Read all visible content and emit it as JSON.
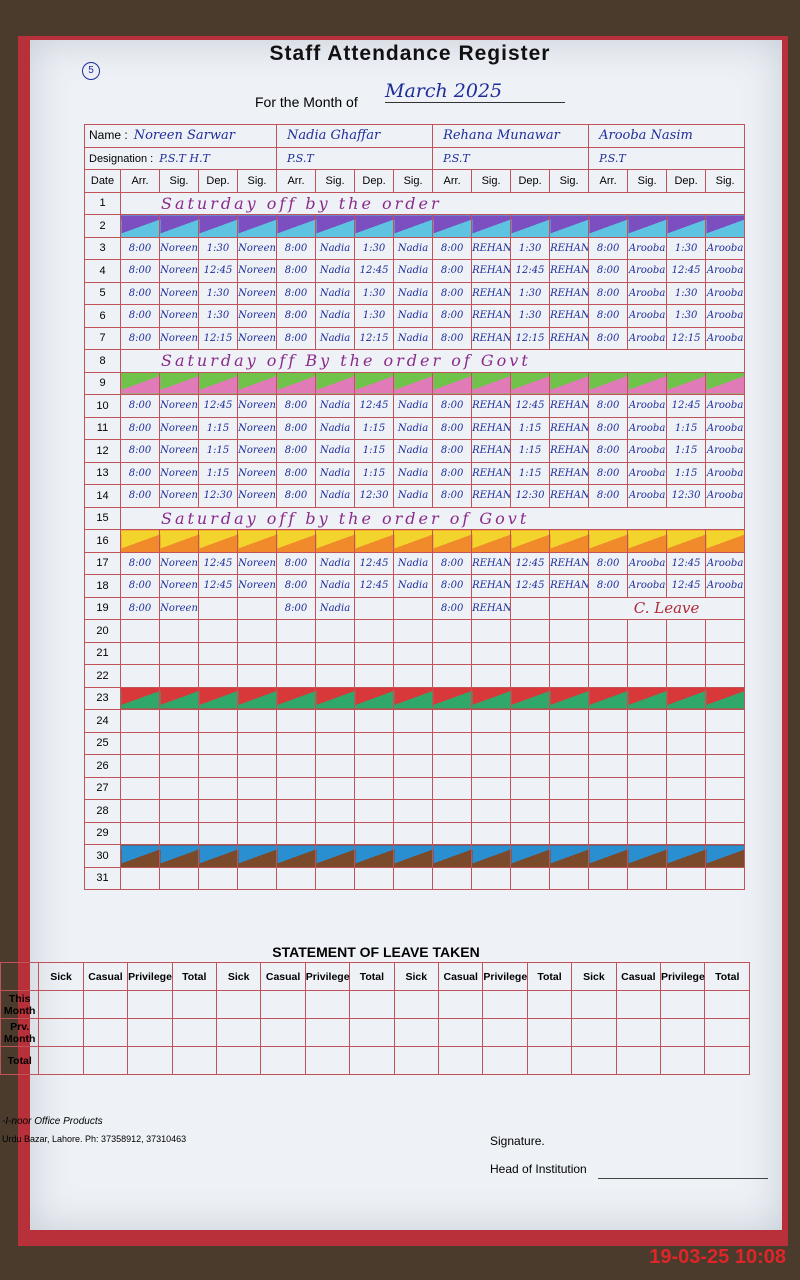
{
  "header": {
    "page": "5",
    "title": "Staff Attendance Register",
    "month_label": "For the Month of",
    "month": "March 2025"
  },
  "labels": {
    "name": "Name :",
    "designation": "Designation :"
  },
  "columns": [
    "Date",
    "Arr.",
    "Sig.",
    "Dep.",
    "Sig."
  ],
  "staff": [
    {
      "name": "Noreen Sarwar",
      "designation": "P.S.T  H.T"
    },
    {
      "name": "Nadia Ghaffar",
      "designation": "P.S.T"
    },
    {
      "name": "Rehana Munawar",
      "designation": "P.S.T"
    },
    {
      "name": "Arooba Nasim",
      "designation": "P.S.T"
    }
  ],
  "rows": [
    {
      "date": "1",
      "note": "Saturday off by the order"
    },
    {
      "date": "2",
      "stripe": [
        "#7b4fc0",
        "#5ec3e0"
      ]
    },
    {
      "date": "3",
      "cells": [
        [
          "8:00",
          "Noreen",
          "1:30",
          "Noreen"
        ],
        [
          "8:00",
          "Nadia",
          "1:30",
          "Nadia"
        ],
        [
          "8:00",
          "REHANA",
          "1:30",
          "REHANA"
        ],
        [
          "8:00",
          "Arooba",
          "1:30",
          "Arooba"
        ]
      ]
    },
    {
      "date": "4",
      "cells": [
        [
          "8:00",
          "Noreen",
          "12:45",
          "Noreen"
        ],
        [
          "8:00",
          "Nadia",
          "12:45",
          "Nadia"
        ],
        [
          "8:00",
          "REHANA",
          "12:45",
          "REHANA"
        ],
        [
          "8:00",
          "Arooba",
          "12:45",
          "Arooba"
        ]
      ]
    },
    {
      "date": "5",
      "cells": [
        [
          "8:00",
          "Noreen",
          "1:30",
          "Noreen"
        ],
        [
          "8:00",
          "Nadia",
          "1:30",
          "Nadia"
        ],
        [
          "8:00",
          "REHANA",
          "1:30",
          "REHANA"
        ],
        [
          "8:00",
          "Arooba",
          "1:30",
          "Arooba"
        ]
      ]
    },
    {
      "date": "6",
      "cells": [
        [
          "8:00",
          "Noreen",
          "1:30",
          "Noreen"
        ],
        [
          "8:00",
          "Nadia",
          "1:30",
          "Nadia"
        ],
        [
          "8:00",
          "REHANA",
          "1:30",
          "REHANA"
        ],
        [
          "8:00",
          "Arooba",
          "1:30",
          "Arooba"
        ]
      ]
    },
    {
      "date": "7",
      "cells": [
        [
          "8:00",
          "Noreen",
          "12:15",
          "Noreen"
        ],
        [
          "8:00",
          "Nadia",
          "12:15",
          "Nadia"
        ],
        [
          "8:00",
          "REHANA",
          "12:15",
          "REHANA"
        ],
        [
          "8:00",
          "Arooba",
          "12:15",
          "Arooba"
        ]
      ]
    },
    {
      "date": "8",
      "note": "Saturday off By the order of Govt"
    },
    {
      "date": "9",
      "stripe": [
        "#6fc24a",
        "#e07bb8"
      ]
    },
    {
      "date": "10",
      "cells": [
        [
          "8:00",
          "Noreen",
          "12:45",
          "Noreen"
        ],
        [
          "8:00",
          "Nadia",
          "12:45",
          "Nadia"
        ],
        [
          "8:00",
          "REHANA",
          "12:45",
          "REHANA"
        ],
        [
          "8:00",
          "Arooba",
          "12:45",
          "Arooba"
        ]
      ]
    },
    {
      "date": "11",
      "cells": [
        [
          "8:00",
          "Noreen",
          "1:15",
          "Noreen"
        ],
        [
          "8:00",
          "Nadia",
          "1:15",
          "Nadia"
        ],
        [
          "8:00",
          "REHANA",
          "1:15",
          "REHANA"
        ],
        [
          "8:00",
          "Arooba",
          "1:15",
          "Arooba"
        ]
      ]
    },
    {
      "date": "12",
      "cells": [
        [
          "8:00",
          "Noreen",
          "1:15",
          "Noreen"
        ],
        [
          "8:00",
          "Nadia",
          "1:15",
          "Nadia"
        ],
        [
          "8:00",
          "REHANA",
          "1:15",
          "REHANA"
        ],
        [
          "8:00",
          "Arooba",
          "1:15",
          "Arooba"
        ]
      ]
    },
    {
      "date": "13",
      "cells": [
        [
          "8:00",
          "Noreen",
          "1:15",
          "Noreen"
        ],
        [
          "8:00",
          "Nadia",
          "1:15",
          "Nadia"
        ],
        [
          "8:00",
          "REHANA",
          "1:15",
          "REHANA"
        ],
        [
          "8:00",
          "Arooba",
          "1:15",
          "Arooba"
        ]
      ]
    },
    {
      "date": "14",
      "cells": [
        [
          "8:00",
          "Noreen",
          "12:30",
          "Noreen"
        ],
        [
          "8:00",
          "Nadia",
          "12:30",
          "Nadia"
        ],
        [
          "8:00",
          "REHANA",
          "12:30",
          "REHANA"
        ],
        [
          "8:00",
          "Arooba",
          "12:30",
          "Arooba"
        ]
      ]
    },
    {
      "date": "15",
      "note": "Saturday off by the order of Govt"
    },
    {
      "date": "16",
      "stripe": [
        "#f2d42c",
        "#f08a2a"
      ]
    },
    {
      "date": "17",
      "cells": [
        [
          "8:00",
          "Noreen",
          "12:45",
          "Noreen"
        ],
        [
          "8:00",
          "Nadia",
          "12:45",
          "Nadia"
        ],
        [
          "8:00",
          "REHANA",
          "12:45",
          "REHANA"
        ],
        [
          "8:00",
          "Arooba",
          "12:45",
          "Arooba"
        ]
      ]
    },
    {
      "date": "18",
      "cells": [
        [
          "8:00",
          "Noreen",
          "12:45",
          "Noreen"
        ],
        [
          "8:00",
          "Nadia",
          "12:45",
          "Nadia"
        ],
        [
          "8:00",
          "REHANA",
          "12:45",
          "REHANA"
        ],
        [
          "8:00",
          "Arooba",
          "12:45",
          "Arooba"
        ]
      ]
    },
    {
      "date": "19",
      "cells": [
        [
          "8:00",
          "Noreen"
        ],
        [
          "8:00",
          "Nadia"
        ],
        [
          "8:00",
          "REHANA"
        ]
      ],
      "leave": "C. Leave"
    },
    {
      "date": "20"
    },
    {
      "date": "21"
    },
    {
      "date": "22"
    },
    {
      "date": "23",
      "stripe": [
        "#d8383a",
        "#2fa86a"
      ]
    },
    {
      "date": "24"
    },
    {
      "date": "25"
    },
    {
      "date": "26"
    },
    {
      "date": "27"
    },
    {
      "date": "28"
    },
    {
      "date": "29"
    },
    {
      "date": "30",
      "stripe": [
        "#2a8fd0",
        "#7a4a2a"
      ]
    },
    {
      "date": "31"
    }
  ],
  "leave": {
    "title": "STATEMENT OF LEAVE TAKEN",
    "columns": [
      "Sick",
      "Casual",
      "Privilege",
      "Total"
    ],
    "rows": [
      "This Month",
      "Prv. Month",
      "Total"
    ]
  },
  "footer": {
    "brand": "-I-noor Office Products",
    "address": "Urdu Bazar, Lahore. Ph: 37358912, 37310463",
    "signature": "Signature.",
    "head": "Head of Institution"
  },
  "timestamp": "19-03-25  10:08"
}
